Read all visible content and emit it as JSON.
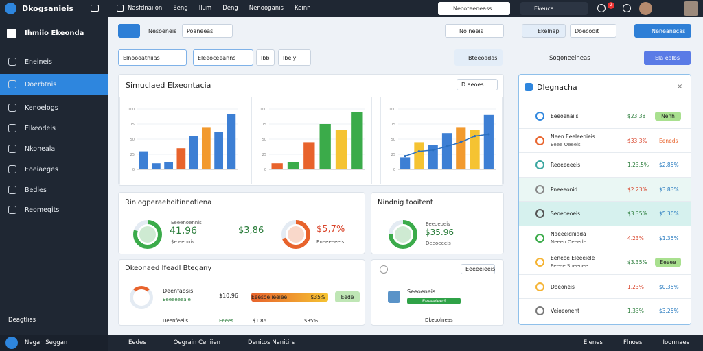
{
  "topbar": {
    "brand": "Dkogsanieis",
    "menu": [
      "Nasfdnaiion",
      "Eeng",
      "Ilum",
      "Deng",
      "Nenooganis",
      "Keinn"
    ],
    "search": "Necoteeneass",
    "select": "Ekeuca",
    "badge": "2"
  },
  "sidebar": {
    "title": "Ihmiio Ekeonda",
    "items": [
      "Eneineis",
      "Doerbtnis",
      "Kenoelogs",
      "Elkeodeis",
      "Nkoneala",
      "Eoeiaeges",
      "Bedies",
      "Reomegits"
    ],
    "footer": "Deagtlies",
    "user": "Negan Seggan"
  },
  "toolbar": {
    "left_button": "Nesoeneis",
    "select": "Poaneeas",
    "right_button": "No neeis",
    "filters": [
      "Elnoooatniias",
      "Eleeoceeanns",
      "Ibb",
      "Ibeiy"
    ],
    "action": "Bteeoadas"
  },
  "right_toolbar": {
    "tab": "Ekelnap",
    "select": "Doecooit",
    "button": "Neneanecas",
    "subtitle": "Soqoneelneas",
    "button2": "Ela ealbs"
  },
  "charts_panel": {
    "title": "Simuclaed Elxeontacia",
    "menu": "D aeoes",
    "charts": [
      {
        "yticks": [
          0,
          25,
          50,
          75,
          100
        ],
        "ylim": [
          0,
          100
        ],
        "values": [
          30,
          10,
          12,
          35,
          55,
          70,
          62,
          92
        ],
        "colors": [
          "#3d7fd4",
          "#3d7fd4",
          "#3d7fd4",
          "#e8632c",
          "#3d7fd4",
          "#f29a2e",
          "#3d7fd4",
          "#3d7fd4"
        ]
      },
      {
        "yticks": [
          0,
          25,
          50,
          75,
          100
        ],
        "ylim": [
          0,
          100
        ],
        "values": [
          10,
          12,
          45,
          75,
          65,
          95
        ],
        "colors": [
          "#e8632c",
          "#3bab4a",
          "#e8632c",
          "#3bab4a",
          "#f5c332",
          "#3bab4a"
        ]
      },
      {
        "yticks": [
          0,
          25,
          50,
          75,
          100
        ],
        "ylim": [
          0,
          100
        ],
        "values": [
          20,
          45,
          40,
          60,
          70,
          65,
          90
        ],
        "colors": [
          "#3d7fd4",
          "#f5c332",
          "#3d7fd4",
          "#3d7fd4",
          "#f29a2e",
          "#f5c332",
          "#3d7fd4"
        ],
        "line": [
          22,
          30,
          32,
          38,
          45,
          55,
          58
        ]
      }
    ]
  },
  "kpi_panel": {
    "title": "Rinlogperaehoitinnotiena",
    "donuts": [
      {
        "value": 80,
        "color": "#3bab4a",
        "label": "Eeeenoennis",
        "amount": "41,96",
        "sub": "$e eeonis"
      },
      {
        "value": 70,
        "color": "#e8632c",
        "label": "Eneeeeeeis",
        "amount": "$5,7%",
        "sub": "Eneeeeeeis"
      }
    ],
    "amount2": "$3,86"
  },
  "kpi_panel2": {
    "title": "Nindnig tooitent",
    "donut": {
      "value": 75,
      "color": "#3bab4a"
    },
    "label": "Eeeoeoeis",
    "amount": "$35.96",
    "sub": "Deeoeeeis"
  },
  "detail_panel": {
    "title": "Dkeonaed Ifeadl Btegany",
    "rows": [
      {
        "name": "Deenfaosis",
        "sub": "Eeeeeeeaie",
        "value": "$10.96",
        "bar": "Eeesoe ieeiee",
        "pct": "$35%",
        "button": "Eede"
      },
      {
        "name": "Deenfeelis",
        "sub": "Eeees",
        "value": "$1.86",
        "pct": "$35%"
      }
    ]
  },
  "detail_panel2": {
    "title": "Eeeeeieeis",
    "name": "Seeoeneis",
    "tag": "Eeeeeieed",
    "sub": "Dkeoolneas"
  },
  "list_panel": {
    "title": "Dlegnacha",
    "rows": [
      {
        "label": "Eeeoenaiis",
        "v1": "$23.38",
        "v2": "Nenh"
      },
      {
        "label": "Neen Eeeleenieis",
        "sub": "Eeee Oeeeis",
        "v1": "$33.3%",
        "v2": "Eeneds"
      },
      {
        "label": "Reoeeeeeis",
        "v1": "1.23.5%",
        "v2": "$2.85%"
      },
      {
        "label": "Pneeeonid",
        "v1": "$2.23%",
        "v2": "$3.83%"
      },
      {
        "label": "Seoeoeoeis",
        "v1": "$3.35%",
        "v2": "$5.30%"
      },
      {
        "label": "Naeeeldniada",
        "sub": "Neeen Oeeede",
        "v1": "4.23%",
        "v2": "$1.35%"
      },
      {
        "label": "Eeneoe Eleeeiele",
        "sub": "Eeeee Sheenee",
        "v1": "$3.35%",
        "v2": "Eeeee"
      },
      {
        "label": "Doeoneis",
        "v1": "1.23%",
        "v2": "$0.35%"
      },
      {
        "label": "Veioeonent",
        "v1": "1.33%",
        "v2": "$3.25%"
      }
    ]
  },
  "bottombar": {
    "items": [
      "Eedes",
      "Oegrain Ceniien",
      "Denitos Nanitirs"
    ],
    "right": [
      "Elenes",
      "Flnoes",
      "Ioonnaes"
    ]
  }
}
